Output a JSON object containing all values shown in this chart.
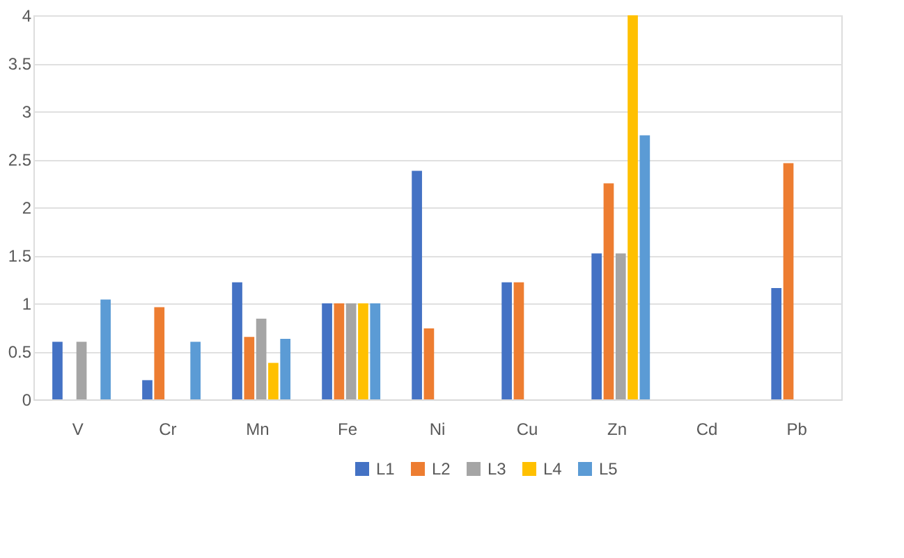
{
  "chart_data": {
    "type": "bar",
    "categories": [
      "V",
      "Cr",
      "Mn",
      "Fe",
      "Ni",
      "Cu",
      "Zn",
      "Cd",
      "Pb"
    ],
    "series": [
      {
        "name": "L1",
        "color": "#4472c4",
        "values": [
          0.6,
          0.2,
          1.22,
          1.0,
          2.38,
          1.22,
          1.52,
          null,
          1.16
        ]
      },
      {
        "name": "L2",
        "color": "#ed7d31",
        "values": [
          null,
          0.96,
          0.65,
          1.0,
          0.74,
          1.22,
          2.25,
          null,
          2.46
        ]
      },
      {
        "name": "L3",
        "color": "#a5a5a5",
        "values": [
          0.6,
          null,
          0.84,
          1.0,
          null,
          null,
          1.52,
          null,
          null
        ]
      },
      {
        "name": "L4",
        "color": "#ffc000",
        "values": [
          null,
          null,
          0.38,
          1.0,
          null,
          null,
          4.0,
          null,
          null
        ]
      },
      {
        "name": "L5",
        "color": "#5b9bd5",
        "values": [
          1.04,
          0.6,
          0.63,
          1.0,
          null,
          null,
          2.75,
          null,
          null
        ]
      }
    ],
    "ylim": [
      0,
      4
    ],
    "yticks": [
      0,
      0.5,
      1,
      1.5,
      2,
      2.5,
      3,
      3.5,
      4
    ],
    "grid": "y",
    "legend": "bottom"
  }
}
